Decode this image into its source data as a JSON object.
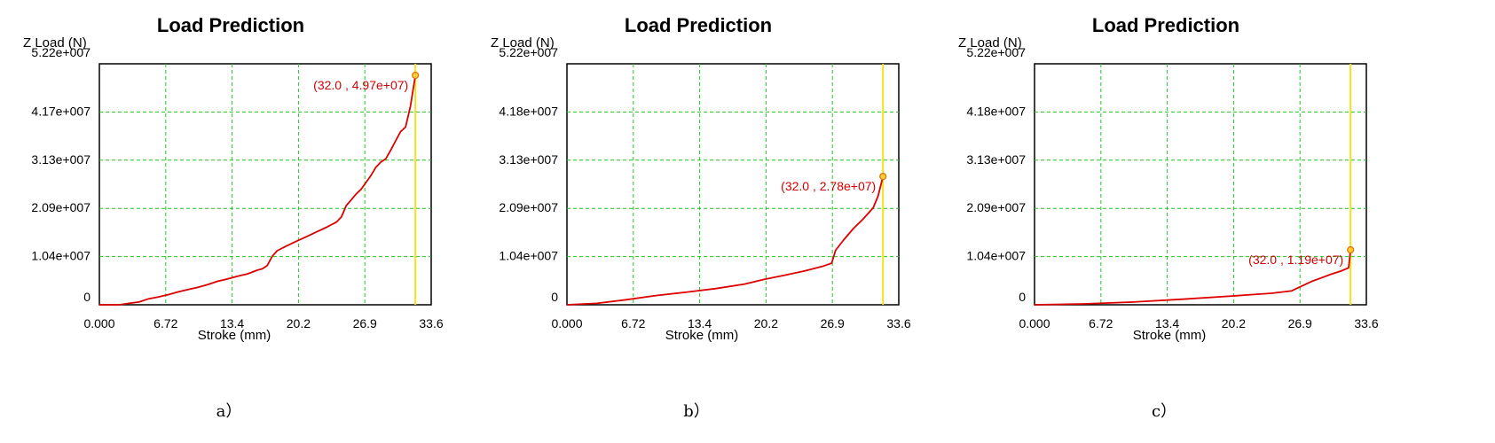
{
  "chart_data": [
    {
      "type": "line",
      "title": "Load Prediction",
      "ylabel": "Z Load (N)",
      "xlabel": "Stroke (mm)",
      "x_ticks": [
        "0.000",
        "6.72",
        "13.4",
        "20.2",
        "26.9",
        "33.6"
      ],
      "y_ticks": [
        "0",
        "1.04e+007",
        "2.09e+007",
        "3.13e+007",
        "4.17e+007",
        "5.22e+007"
      ],
      "xlim": [
        0,
        33.6
      ],
      "ylim": [
        0,
        52200000
      ],
      "grid": true,
      "series": [
        {
          "x": [
            0,
            2,
            3,
            4,
            5,
            6,
            7,
            8,
            9,
            10,
            11,
            12,
            13,
            14,
            15,
            16,
            16.5,
            17,
            17.5,
            18,
            19,
            20,
            21,
            22,
            23,
            24,
            24.5,
            25,
            25.5,
            26,
            26.5,
            27,
            27.5,
            28,
            28.5,
            29,
            29.5,
            30,
            30.5,
            31,
            31.5,
            32
          ],
          "y": [
            0,
            0,
            300000,
            600000,
            1300000,
            1700000,
            2200000,
            2800000,
            3300000,
            3800000,
            4400000,
            5100000,
            5600000,
            6200000,
            6700000,
            7500000,
            7800000,
            8500000,
            10500000,
            11700000,
            12800000,
            13800000,
            14800000,
            15800000,
            16800000,
            17900000,
            19000000,
            21500000,
            22700000,
            24000000,
            25000000,
            26500000,
            28000000,
            29800000,
            30900000,
            31600000,
            33500000,
            35500000,
            37500000,
            38500000,
            43000000,
            49700000
          ]
        }
      ],
      "marker_x": 32.0,
      "annotation": "(32.0 , 4.97e+07)",
      "annotation_point": [
        32.0,
        49700000
      ],
      "caption": "a）"
    },
    {
      "type": "line",
      "title": "Load Prediction",
      "ylabel": "Z Load (N)",
      "xlabel": "Stroke (mm)",
      "x_ticks": [
        "0.000",
        "6.72",
        "13.4",
        "20.2",
        "26.9",
        "33.6"
      ],
      "y_ticks": [
        "0",
        "1.04e+007",
        "2.09e+007",
        "3.13e+007",
        "4.18e+007",
        "5.22e+007"
      ],
      "xlim": [
        0,
        33.6
      ],
      "ylim": [
        0,
        52200000
      ],
      "grid": true,
      "series": [
        {
          "x": [
            0,
            3,
            6,
            9,
            12,
            15,
            18,
            20,
            22,
            24,
            26,
            26.8,
            27.2,
            28,
            29,
            30,
            31,
            31.5,
            32
          ],
          "y": [
            0,
            300000,
            1100000,
            2000000,
            2700000,
            3500000,
            4500000,
            5500000,
            6400000,
            7300000,
            8400000,
            9000000,
            11800000,
            14000000,
            16500000,
            18600000,
            21000000,
            23500000,
            27800000
          ]
        }
      ],
      "marker_x": 32.0,
      "annotation": "(32.0 , 2.78e+07)",
      "annotation_point": [
        32.0,
        27800000
      ],
      "caption": "b）"
    },
    {
      "type": "line",
      "title": "Load Prediction",
      "ylabel": "Z Load (N)",
      "xlabel": "Stroke (mm)",
      "x_ticks": [
        "0.000",
        "6.72",
        "13.4",
        "20.2",
        "26.9",
        "33.6"
      ],
      "y_ticks": [
        "0",
        "1.04e+007",
        "2.09e+007",
        "3.13e+007",
        "4.18e+007",
        "5.22e+007"
      ],
      "xlim": [
        0,
        33.6
      ],
      "ylim": [
        0,
        52200000
      ],
      "grid": true,
      "series": [
        {
          "x": [
            0,
            5,
            10,
            15,
            20,
            24,
            26,
            27,
            28,
            29,
            30,
            31,
            31.8,
            32
          ],
          "y": [
            0,
            200000,
            600000,
            1200000,
            1900000,
            2500000,
            3000000,
            4000000,
            5000000,
            5800000,
            6600000,
            7300000,
            8000000,
            11900000
          ]
        }
      ],
      "marker_x": 32.0,
      "annotation": "(32.0 , 1.19e+07)",
      "annotation_point": [
        32.0,
        11900000
      ],
      "caption": "c）"
    }
  ]
}
